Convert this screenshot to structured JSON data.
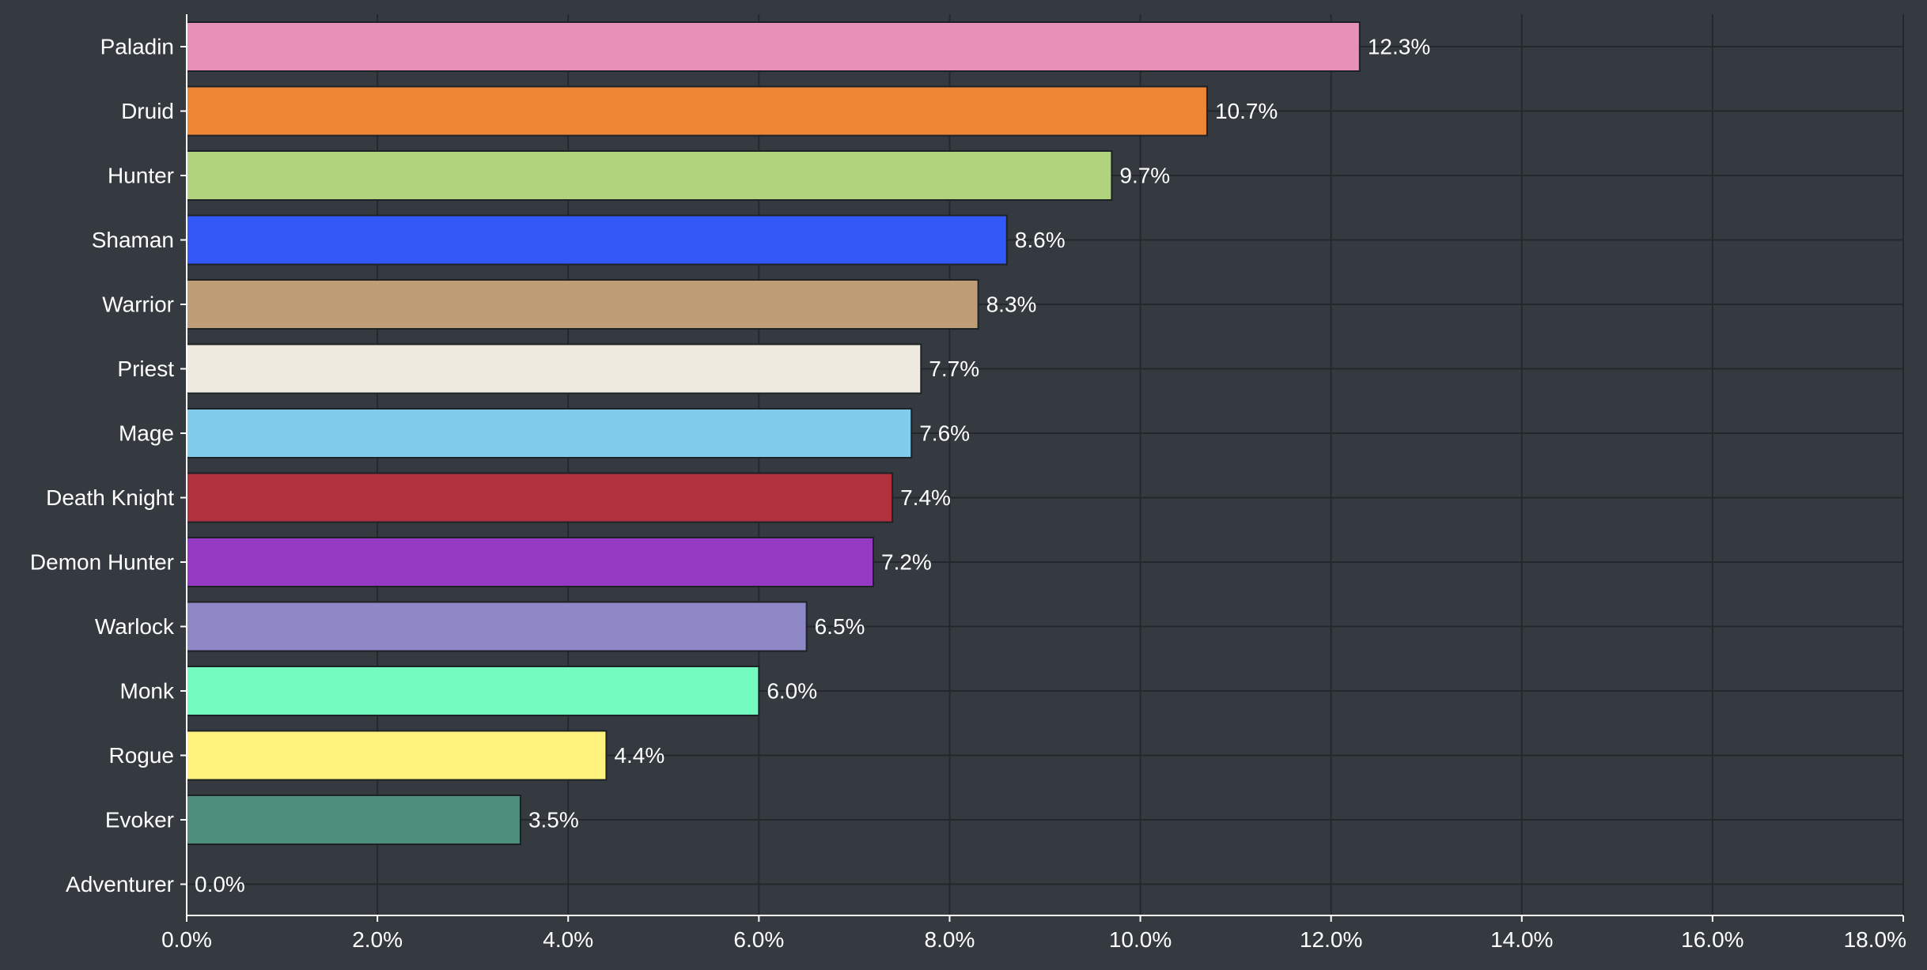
{
  "chart_data": {
    "type": "bar",
    "orientation": "horizontal",
    "title": "",
    "xlabel": "",
    "ylabel": "",
    "xlim": [
      0,
      18
    ],
    "x_ticks": [
      "0.0%",
      "2.0%",
      "4.0%",
      "6.0%",
      "8.0%",
      "10.0%",
      "12.0%",
      "14.0%",
      "16.0%",
      "18.0%"
    ],
    "grid": true,
    "legend": "none",
    "background_color": "#343a3f",
    "categories": [
      "Paladin",
      "Druid",
      "Hunter",
      "Shaman",
      "Warrior",
      "Priest",
      "Mage",
      "Death Knight",
      "Demon Hunter",
      "Warlock",
      "Monk",
      "Rogue",
      "Evoker",
      "Adventurer"
    ],
    "values": [
      12.3,
      10.7,
      9.7,
      8.6,
      8.3,
      7.7,
      7.6,
      7.4,
      7.2,
      6.5,
      6.0,
      4.4,
      3.5,
      0.0
    ],
    "value_labels": [
      "12.3%",
      "10.7%",
      "9.7%",
      "8.6%",
      "8.3%",
      "7.7%",
      "7.6%",
      "7.4%",
      "7.2%",
      "6.5%",
      "6.0%",
      "4.4%",
      "3.5%",
      "0.0%"
    ],
    "colors": [
      "#e791b8",
      "#ef8636",
      "#b2d37e",
      "#3258f8",
      "#bf9d76",
      "#eeeae0",
      "#81cbed",
      "#b2313f",
      "#9539c2",
      "#8f88c6",
      "#73fbc0",
      "#fef27c",
      "#4d8f7d",
      "#9aa0a6"
    ]
  }
}
